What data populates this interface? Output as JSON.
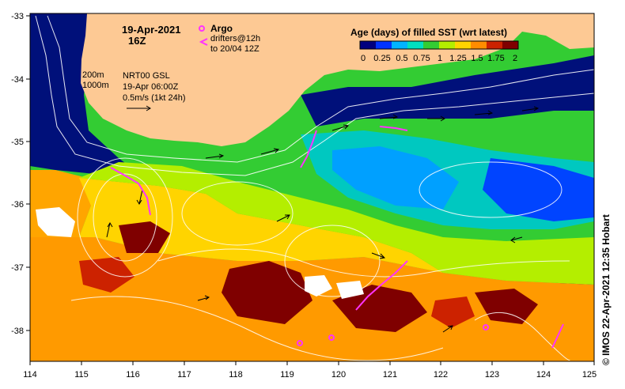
{
  "title": {
    "date": "19-Apr-2021",
    "time": "16Z"
  },
  "legend": {
    "argo_label": "Argo",
    "drifters_label": "drifters@12h",
    "drifters_to": "to 20/04 12Z",
    "argo_color": "#ff33ff",
    "drifter_color": "#ff33ff"
  },
  "isobaths": {
    "line1": "200m",
    "line2": "1000m"
  },
  "currents_info": {
    "product": "NRT00 GSL",
    "datetime": "19-Apr 06:00Z",
    "scale": "0.5m/s (1kt 24h)"
  },
  "colorbar": {
    "title": "Age (days) of filled SST (wrt latest)",
    "tick_labels": [
      "0",
      "0.25",
      "0.5",
      "0.75",
      "1",
      "1.25",
      "1.5",
      "1.75",
      "2"
    ],
    "colors": [
      "#00007f",
      "#0033ff",
      "#00b4ff",
      "#00e0c0",
      "#33cc33",
      "#b4ee00",
      "#ffd400",
      "#ff8c00",
      "#cc2200",
      "#7f0000"
    ]
  },
  "axes": {
    "x_ticks": [
      "114",
      "115",
      "116",
      "117",
      "118",
      "119",
      "120",
      "121",
      "122",
      "123",
      "124",
      "125"
    ],
    "y_ticks": [
      "-33",
      "-34",
      "-35",
      "-36",
      "-37",
      "-38"
    ]
  },
  "credit": "© IMOS 22-Apr-2021 12:35 Hobart",
  "colors": {
    "land": "#fdc994",
    "no_data": "#ffffff",
    "deep_water": "#00107a"
  }
}
